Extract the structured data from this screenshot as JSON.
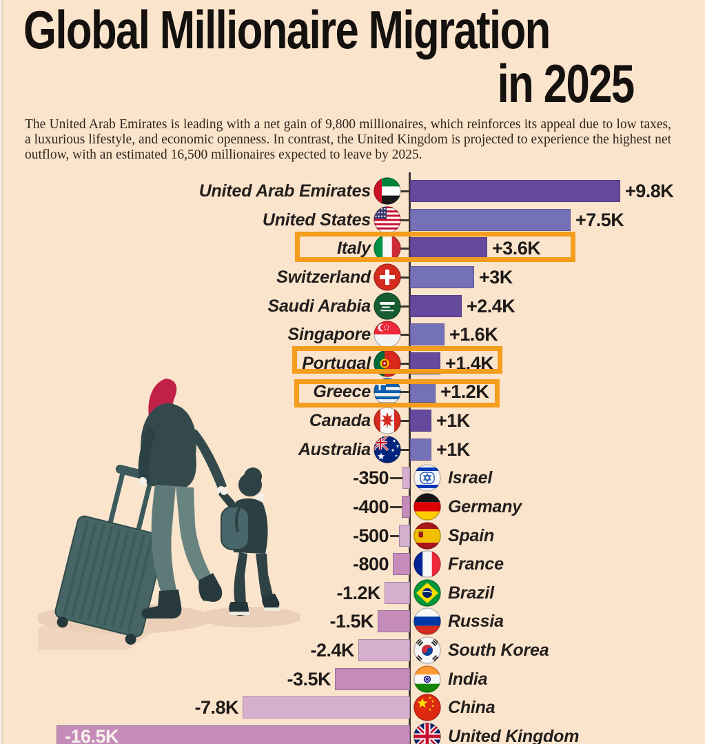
{
  "page": {
    "background_color": "#fbe4cc"
  },
  "header": {
    "title_line1": "Global Millionaire Migration",
    "title_line2": "in 2025",
    "subtitle": "The United Arab Emirates is leading with a net gain of 9,800 millionaires, which reinforces its appeal due to low taxes, a luxurious lifestyle, and economic openness. In contrast, the United Kingdom is projected to experience the highest net outflow, with an estimated 16,500 millionaires expected to leave by 2025."
  },
  "chart_data": {
    "type": "bar",
    "orientation": "horizontal-diverging",
    "title": "Global Millionaire Migration in 2025",
    "unit": "net millionaire migration (people)",
    "xlabel": "",
    "ylabel": "",
    "grid": false,
    "legend": false,
    "highlighted_countries": [
      "Italy",
      "Portugal",
      "Greece"
    ],
    "categories": [
      "United Arab Emirates",
      "United States",
      "Italy",
      "Switzerland",
      "Saudi Arabia",
      "Singapore",
      "Portugal",
      "Greece",
      "Canada",
      "Australia",
      "Israel",
      "Germany",
      "Spain",
      "France",
      "Brazil",
      "Russia",
      "South Korea",
      "India",
      "China",
      "United Kingdom"
    ],
    "rows": [
      {
        "country": "United Arab Emirates",
        "flag": "uae",
        "value": 9800,
        "label": "+9.8K",
        "highlighted": false
      },
      {
        "country": "United States",
        "flag": "usa",
        "value": 7500,
        "label": "+7.5K",
        "highlighted": false
      },
      {
        "country": "Italy",
        "flag": "italy",
        "value": 3600,
        "label": "+3.6K",
        "highlighted": true
      },
      {
        "country": "Switzerland",
        "flag": "switzerland",
        "value": 3000,
        "label": "+3K",
        "highlighted": false
      },
      {
        "country": "Saudi Arabia",
        "flag": "saudi-arabia",
        "value": 2400,
        "label": "+2.4K",
        "highlighted": false
      },
      {
        "country": "Singapore",
        "flag": "singapore",
        "value": 1600,
        "label": "+1.6K",
        "highlighted": false
      },
      {
        "country": "Portugal",
        "flag": "portugal",
        "value": 1400,
        "label": "+1.4K",
        "highlighted": true
      },
      {
        "country": "Greece",
        "flag": "greece",
        "value": 1200,
        "label": "+1.2K",
        "highlighted": true
      },
      {
        "country": "Canada",
        "flag": "canada",
        "value": 1000,
        "label": "+1K",
        "highlighted": false
      },
      {
        "country": "Australia",
        "flag": "australia",
        "value": 1000,
        "label": "+1K",
        "highlighted": false
      },
      {
        "country": "Israel",
        "flag": "israel",
        "value": -350,
        "label": "-350",
        "highlighted": false
      },
      {
        "country": "Germany",
        "flag": "germany",
        "value": -400,
        "label": "-400",
        "highlighted": false
      },
      {
        "country": "Spain",
        "flag": "spain",
        "value": -500,
        "label": "-500",
        "highlighted": false
      },
      {
        "country": "France",
        "flag": "france",
        "value": -800,
        "label": "-800",
        "highlighted": false
      },
      {
        "country": "Brazil",
        "flag": "brazil",
        "value": -1200,
        "label": "-1.2K",
        "highlighted": false
      },
      {
        "country": "Russia",
        "flag": "russia",
        "value": -1500,
        "label": "-1.5K",
        "highlighted": false
      },
      {
        "country": "South Korea",
        "flag": "south-korea",
        "value": -2400,
        "label": "-2.4K",
        "highlighted": false
      },
      {
        "country": "India",
        "flag": "india",
        "value": -3500,
        "label": "-3.5K",
        "highlighted": false
      },
      {
        "country": "China",
        "flag": "china",
        "value": -7800,
        "label": "-7.8K",
        "highlighted": false
      },
      {
        "country": "United Kingdom",
        "flag": "uk",
        "value": -16500,
        "label": "-16.5K",
        "highlighted": false,
        "label_inside": true
      }
    ],
    "colors": {
      "positive_dark": "#65499c",
      "positive_light": "#7571b6",
      "negative_light": "#d6afce",
      "negative_dark": "#c58cba",
      "highlight_box": "#f59d1d",
      "axis": "#393430",
      "background": "#fbe4cc"
    }
  }
}
